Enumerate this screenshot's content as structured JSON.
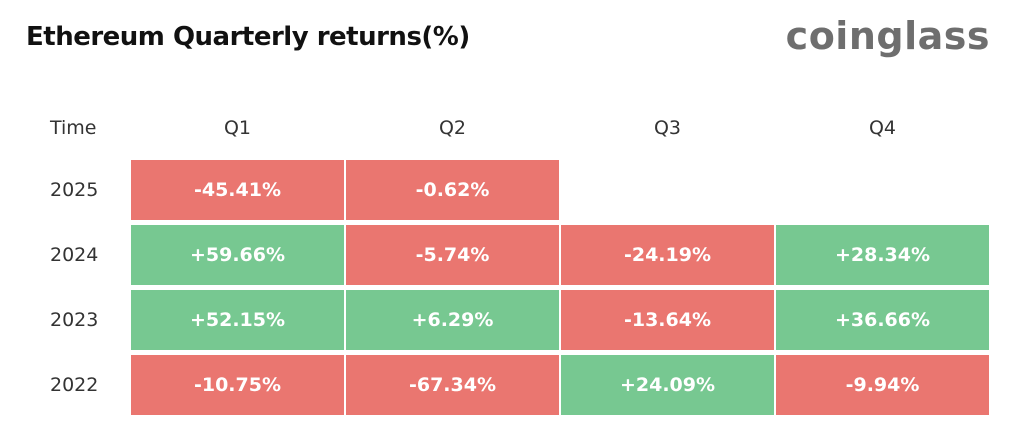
{
  "title": "Ethereum Quarterly returns(%)",
  "brand": "coinglass",
  "colors": {
    "positive": "#77c891",
    "negative": "#ea7670"
  },
  "chart_data": {
    "type": "heatmap",
    "title": "Ethereum Quarterly returns(%)",
    "row_header": "Time",
    "columns": [
      "Q1",
      "Q2",
      "Q3",
      "Q4"
    ],
    "rows": [
      {
        "year": "2025",
        "cells": [
          "-45.41%",
          "-0.62%",
          null,
          null
        ],
        "values": [
          -45.41,
          -0.62,
          null,
          null
        ]
      },
      {
        "year": "2024",
        "cells": [
          "+59.66%",
          "-5.74%",
          "-24.19%",
          "+28.34%"
        ],
        "values": [
          59.66,
          -5.74,
          -24.19,
          28.34
        ]
      },
      {
        "year": "2023",
        "cells": [
          "+52.15%",
          "+6.29%",
          "-13.64%",
          "+36.66%"
        ],
        "values": [
          52.15,
          6.29,
          -13.64,
          36.66
        ]
      },
      {
        "year": "2022",
        "cells": [
          "-10.75%",
          "-67.34%",
          "+24.09%",
          "-9.94%"
        ],
        "values": [
          -10.75,
          -67.34,
          24.09,
          -9.94
        ]
      }
    ]
  }
}
